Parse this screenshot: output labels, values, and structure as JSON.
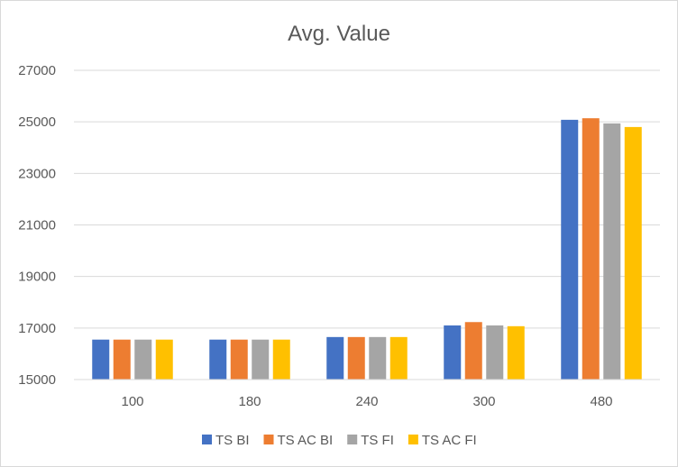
{
  "chart_data": {
    "type": "bar",
    "title": "Avg. Value",
    "xlabel": "",
    "ylabel": "",
    "categories": [
      "100",
      "180",
      "240",
      "300",
      "480"
    ],
    "series": [
      {
        "name": "TS BI",
        "color": "#4472c4",
        "values": [
          16550,
          16550,
          16650,
          17100,
          25080
        ]
      },
      {
        "name": "TS AC BI",
        "color": "#ed7d31",
        "values": [
          16550,
          16550,
          16650,
          17230,
          25140
        ]
      },
      {
        "name": "TS FI",
        "color": "#a5a5a5",
        "values": [
          16550,
          16550,
          16650,
          17100,
          24940
        ]
      },
      {
        "name": "TS AC FI",
        "color": "#ffc000",
        "values": [
          16550,
          16550,
          16650,
          17070,
          24800
        ]
      }
    ],
    "ylim": [
      15000,
      27000
    ],
    "yticks": [
      "15000",
      "17000",
      "19000",
      "21000",
      "23000",
      "25000",
      "27000"
    ],
    "grid": true,
    "legend_position": "bottom"
  }
}
